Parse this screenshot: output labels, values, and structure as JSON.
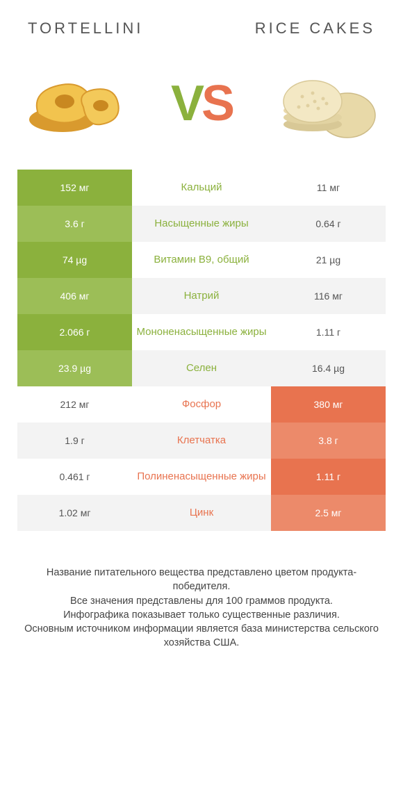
{
  "left_title": "TORTELLINI",
  "right_title": "RICE CAKES",
  "vs_v": "V",
  "vs_s": "S",
  "colors": {
    "green": "#8bb13d",
    "green_alt": "#9cbe57",
    "orange": "#e8734f",
    "orange_alt": "#ec8a6a",
    "grey_alt": "#f3f3f3"
  },
  "rows": [
    {
      "label": "Кальций",
      "left": "152 мг",
      "right": "11 мг",
      "winner": "left"
    },
    {
      "label": "Насыщенные жиры",
      "left": "3.6 г",
      "right": "0.64 г",
      "winner": "left"
    },
    {
      "label": "Витамин B9, общий",
      "left": "74 µg",
      "right": "21 µg",
      "winner": "left"
    },
    {
      "label": "Натрий",
      "left": "406 мг",
      "right": "116 мг",
      "winner": "left"
    },
    {
      "label": "Мононенасыщенные жиры",
      "left": "2.066 г",
      "right": "1.11 г",
      "winner": "left"
    },
    {
      "label": "Селен",
      "left": "23.9 µg",
      "right": "16.4 µg",
      "winner": "left"
    },
    {
      "label": "Фосфор",
      "left": "212 мг",
      "right": "380 мг",
      "winner": "right"
    },
    {
      "label": "Клетчатка",
      "left": "1.9 г",
      "right": "3.8 г",
      "winner": "right"
    },
    {
      "label": "Полиненасыщенные жиры",
      "left": "0.461 г",
      "right": "1.11 г",
      "winner": "right"
    },
    {
      "label": "Цинк",
      "left": "1.02 мг",
      "right": "2.5 мг",
      "winner": "right"
    }
  ],
  "footer_lines": [
    "Название питательного вещества представлено цветом продукта-победителя.",
    "Все значения представлены для 100 граммов продукта.",
    "Инфографика показывает только существенные различия.",
    "Основным источником информации является база министерства сельского хозяйства США."
  ]
}
